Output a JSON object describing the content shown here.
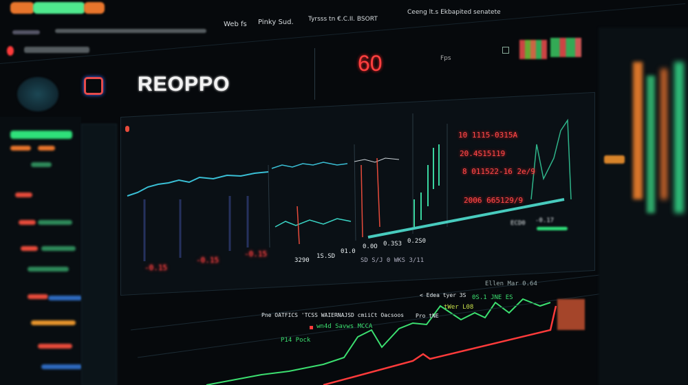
{
  "top_bar": {
    "menu_items": [
      "Web fs",
      "Pinky Sud.",
      "Tyrsss tn €.C.II. BSORT",
      "Ceeng lt.s Ekbapited senatete"
    ]
  },
  "header": {
    "logo": "REOPPO",
    "counter": "60",
    "counter_unit": "Fps"
  },
  "main_chart": {
    "price_labels": [
      "10 1115-0315A",
      "20.4S15119",
      "8 011522-16 2e/9",
      "2006 665129/9"
    ],
    "bottom_values": [
      "3290",
      "1S.SD",
      "01.0",
      "0.0O",
      "0.3S3",
      "0.2S0"
    ],
    "footer_text": "SD S/J 0 WKS 3/11",
    "red_values": [
      "-0.15",
      "-0.15",
      "-0.15"
    ],
    "right_labels": [
      "ECD0",
      "-0.17"
    ]
  },
  "ticker_panel": {
    "row1": "Ellen Mar 0.64",
    "row2": "Pne OATFICS 'TCSS WAIERNAJSD cmiiCt Oacsoos",
    "row3": "< Edea tyer 3S",
    "green_text": "0S.1 JNE ES",
    "row4": "Pro tNE",
    "green_text2": "tWer L08",
    "row5": "wn4d Savws MCCA",
    "row6": "P14 Pock"
  },
  "colors": {
    "accent_green": "#2fe07a",
    "accent_red": "#ff3b3b",
    "accent_teal": "#3ad6c6",
    "accent_orange": "#f07a30",
    "background": "#06090c"
  }
}
